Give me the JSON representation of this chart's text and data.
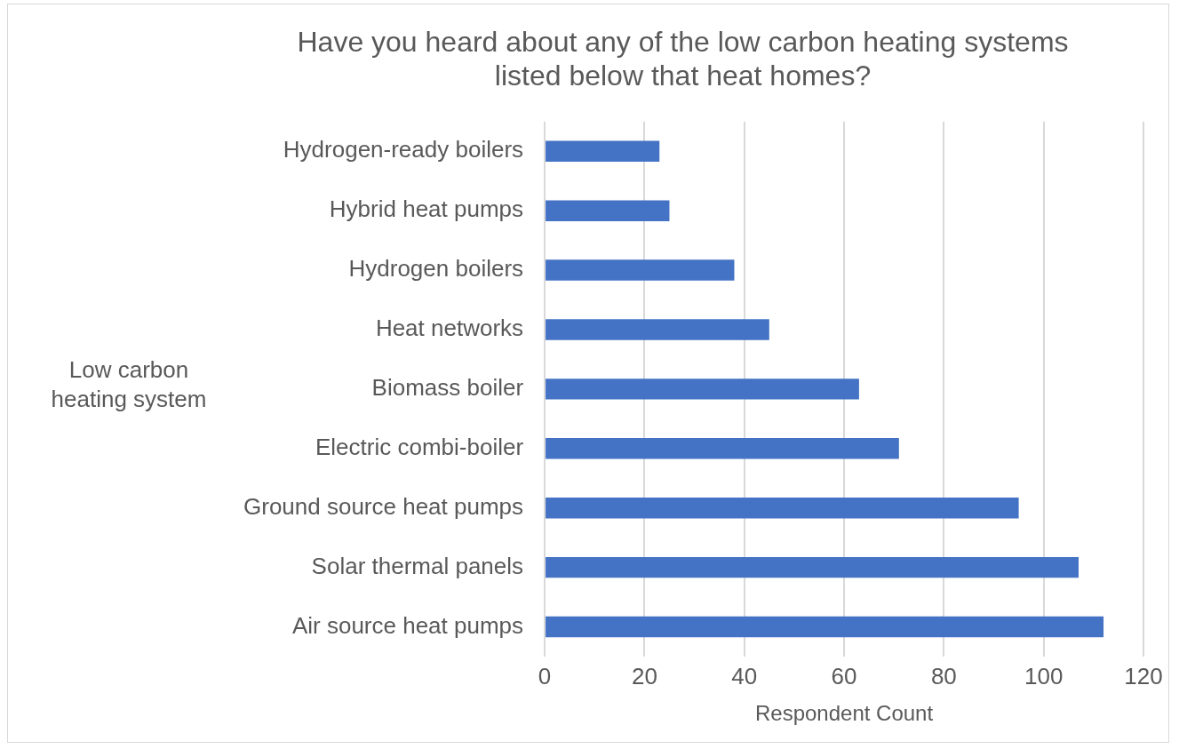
{
  "chart_data": {
    "type": "bar",
    "orientation": "horizontal",
    "title": [
      "Have you heard about any of the low carbon heating systems",
      "listed below that heat homes?"
    ],
    "categories": [
      "Hydrogen-ready boilers",
      "Hybrid heat pumps",
      "Hydrogen boilers",
      "Heat networks",
      "Biomass boiler",
      "Electric combi-boiler",
      "Ground source heat pumps",
      "Solar thermal panels",
      "Air source heat pumps"
    ],
    "values": [
      23,
      25,
      38,
      45,
      63,
      71,
      95,
      107,
      112
    ],
    "color": "#4472c4",
    "xlabel": "Respondent Count",
    "ylabel": "Low carbon heating system",
    "xlim": [
      0,
      120
    ],
    "xticks": [
      0,
      20,
      40,
      60,
      80,
      100,
      120
    ],
    "grid": "x",
    "legend": false
  }
}
